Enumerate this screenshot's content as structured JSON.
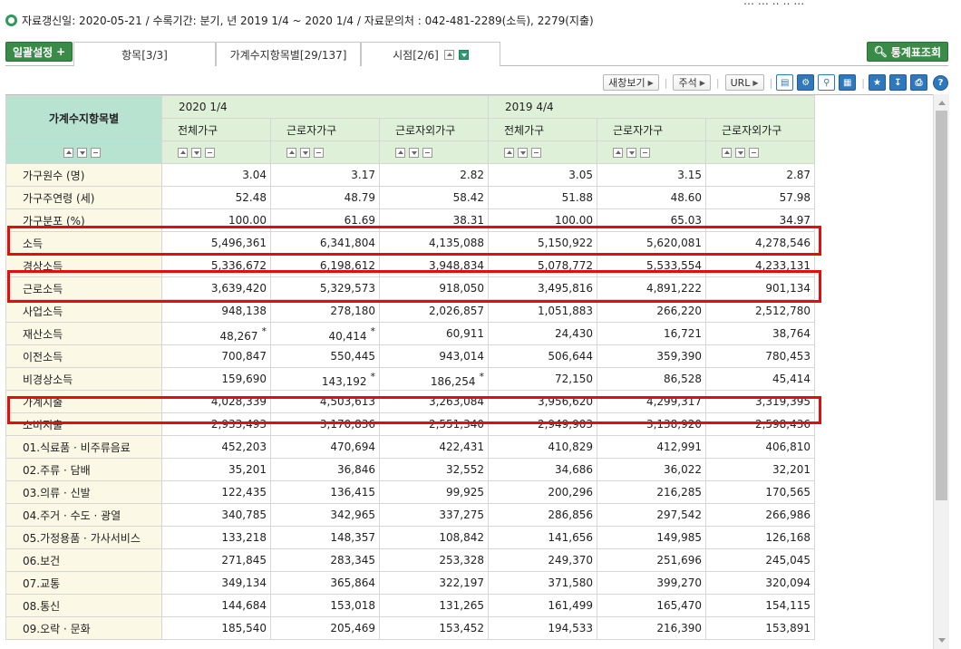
{
  "top_cut": "… … ‥ ‥ …",
  "info": {
    "text": "자료갱신일: 2020-05-21 / 수록기간: 분기, 년 2019 1/4 ~ 2020 1/4 / 자료문의처 : 042-481-2289(소득), 2279(지출)"
  },
  "tabbar": {
    "bulk_label": "일괄설정",
    "bulk_plus": "+",
    "tab_items": "항목[3/3]",
    "tab_category": "가계수지항목별[29/137]",
    "tab_time": "시점[2/6]",
    "stat_label": "통계표조회"
  },
  "toolbar": {
    "new_window": "새창보기",
    "note": "주석",
    "url": "URL",
    "sep": "|"
  },
  "table": {
    "corner": "가계수지항목별",
    "periods": [
      "2020 1/4",
      "2019 4/4"
    ],
    "columns": [
      "전체가구",
      "근로자가구",
      "근로자외가구",
      "전체가구",
      "근로자가구",
      "근로자외가구"
    ],
    "rows": [
      {
        "label": "가구원수 (명)",
        "values": [
          "3.04",
          "3.17",
          "2.82",
          "3.05",
          "3.15",
          "2.87"
        ],
        "star": [
          false,
          false,
          false,
          false,
          false,
          false
        ]
      },
      {
        "label": "가구주연령 (세)",
        "values": [
          "52.48",
          "48.79",
          "58.42",
          "51.88",
          "48.60",
          "57.98"
        ],
        "star": [
          false,
          false,
          false,
          false,
          false,
          false
        ]
      },
      {
        "label": "가구분포 (%)",
        "values": [
          "100.00",
          "61.69",
          "38.31",
          "100.00",
          "65.03",
          "34.97"
        ],
        "star": [
          false,
          false,
          false,
          false,
          false,
          false
        ]
      },
      {
        "label": "소득",
        "values": [
          "5,496,361",
          "6,341,804",
          "4,135,088",
          "5,150,922",
          "5,620,081",
          "4,278,546"
        ],
        "star": [
          false,
          false,
          false,
          false,
          false,
          false
        ]
      },
      {
        "label": "경상소득",
        "values": [
          "5,336,672",
          "6,198,612",
          "3,948,834",
          "5,078,772",
          "5,533,554",
          "4,233,131"
        ],
        "star": [
          false,
          false,
          false,
          false,
          false,
          false
        ]
      },
      {
        "label": "근로소득",
        "values": [
          "3,639,420",
          "5,329,573",
          "918,050",
          "3,495,816",
          "4,891,222",
          "901,134"
        ],
        "star": [
          false,
          false,
          false,
          false,
          false,
          false
        ]
      },
      {
        "label": "사업소득",
        "values": [
          "948,138",
          "278,180",
          "2,026,857",
          "1,051,883",
          "266,220",
          "2,512,780"
        ],
        "star": [
          false,
          false,
          false,
          false,
          false,
          false
        ]
      },
      {
        "label": "재산소득",
        "values": [
          "48,267",
          "40,414",
          "60,911",
          "24,430",
          "16,721",
          "38,764"
        ],
        "star": [
          true,
          true,
          false,
          false,
          false,
          false
        ]
      },
      {
        "label": "이전소득",
        "values": [
          "700,847",
          "550,445",
          "943,014",
          "506,644",
          "359,390",
          "780,453"
        ],
        "star": [
          false,
          false,
          false,
          false,
          false,
          false
        ]
      },
      {
        "label": "비경상소득",
        "values": [
          "159,690",
          "143,192",
          "186,254",
          "72,150",
          "86,528",
          "45,414"
        ],
        "star": [
          false,
          true,
          true,
          false,
          false,
          false
        ]
      },
      {
        "label": "가계지출",
        "values": [
          "4,028,339",
          "4,503,613",
          "3,263,084",
          "3,956,620",
          "4,299,317",
          "3,319,395"
        ],
        "star": [
          false,
          false,
          false,
          false,
          false,
          false
        ]
      },
      {
        "label": "소비지출",
        "values": [
          "2,933,493",
          "3,170,836",
          "2,551,340",
          "2,949,903",
          "3,138,920",
          "2,598,436"
        ],
        "star": [
          false,
          false,
          false,
          false,
          false,
          false
        ]
      },
      {
        "label": "01.식료품 · 비주류음료",
        "values": [
          "452,203",
          "470,694",
          "422,431",
          "410,829",
          "412,991",
          "406,810"
        ],
        "star": [
          false,
          false,
          false,
          false,
          false,
          false
        ]
      },
      {
        "label": "02.주류 · 담배",
        "values": [
          "35,201",
          "36,846",
          "32,552",
          "34,686",
          "36,022",
          "32,201"
        ],
        "star": [
          false,
          false,
          false,
          false,
          false,
          false
        ]
      },
      {
        "label": "03.의류 · 신발",
        "values": [
          "122,435",
          "136,415",
          "99,925",
          "200,296",
          "216,285",
          "170,565"
        ],
        "star": [
          false,
          false,
          false,
          false,
          false,
          false
        ]
      },
      {
        "label": "04.주거 · 수도 · 광열",
        "values": [
          "340,785",
          "342,965",
          "337,275",
          "286,856",
          "297,542",
          "266,986"
        ],
        "star": [
          false,
          false,
          false,
          false,
          false,
          false
        ]
      },
      {
        "label": "05.가정용품 · 가사서비스",
        "values": [
          "133,218",
          "148,357",
          "108,842",
          "141,656",
          "149,985",
          "126,168"
        ],
        "star": [
          false,
          false,
          false,
          false,
          false,
          false
        ]
      },
      {
        "label": "06.보건",
        "values": [
          "271,845",
          "283,345",
          "253,328",
          "249,370",
          "251,696",
          "245,045"
        ],
        "star": [
          false,
          false,
          false,
          false,
          false,
          false
        ]
      },
      {
        "label": "07.교통",
        "values": [
          "349,134",
          "365,864",
          "322,197",
          "371,580",
          "399,270",
          "320,094"
        ],
        "star": [
          false,
          false,
          false,
          false,
          false,
          false
        ]
      },
      {
        "label": "08.통신",
        "values": [
          "144,684",
          "153,018",
          "131,265",
          "161,499",
          "165,470",
          "154,115"
        ],
        "star": [
          false,
          false,
          false,
          false,
          false,
          false
        ]
      },
      {
        "label": "09.오락 · 문화",
        "values": [
          "185,540",
          "205,469",
          "153,452",
          "194,533",
          "216,390",
          "153,891"
        ],
        "star": [
          false,
          false,
          false,
          false,
          false,
          false
        ]
      }
    ],
    "star_symbol": "*",
    "highlight_rows": [
      "소득",
      "근로소득",
      "가계지출"
    ]
  },
  "icons": {
    "info": "info-circle-icon",
    "search": "magnifier-icon",
    "highlight_color": "#e40d0d",
    "accent": "#3b8b48"
  }
}
